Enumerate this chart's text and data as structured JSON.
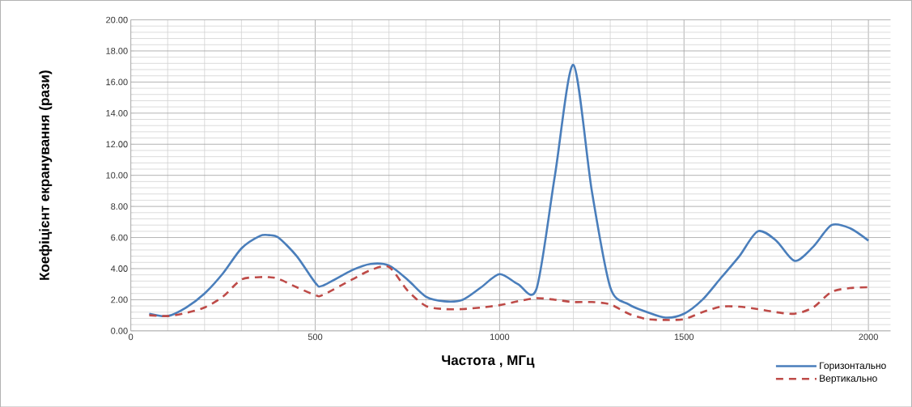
{
  "chart_data": {
    "type": "line",
    "xlabel": "Частота , МГц",
    "ylabel": "Коефіцієнт екранування  (рази)",
    "x": [
      50,
      100,
      150,
      200,
      250,
      300,
      350,
      375,
      400,
      450,
      500,
      520,
      600,
      650,
      700,
      750,
      800,
      850,
      900,
      950,
      1000,
      1050,
      1100,
      1150,
      1200,
      1250,
      1300,
      1350,
      1400,
      1450,
      1500,
      1550,
      1600,
      1650,
      1700,
      1750,
      1800,
      1850,
      1900,
      1950,
      2000
    ],
    "series": [
      {
        "name": "Горизонтально",
        "color": "#4a7ebb",
        "line_style": "solid",
        "values": [
          1.1,
          0.95,
          1.5,
          2.4,
          3.7,
          5.3,
          6.1,
          6.15,
          6.0,
          4.8,
          3.1,
          2.9,
          3.9,
          4.3,
          4.2,
          3.3,
          2.2,
          1.9,
          2.0,
          2.8,
          3.65,
          3.0,
          2.7,
          10.0,
          17.1,
          9.0,
          2.8,
          1.7,
          1.2,
          0.85,
          1.1,
          2.0,
          3.4,
          4.8,
          6.4,
          5.8,
          4.5,
          5.4,
          6.8,
          6.6,
          5.8
        ]
      },
      {
        "name": "Вертикально",
        "color": "#be4b48",
        "line_style": "dashed",
        "values": [
          1.0,
          0.95,
          1.15,
          1.5,
          2.2,
          3.3,
          3.45,
          3.45,
          3.35,
          2.8,
          2.3,
          2.3,
          3.3,
          3.9,
          4.1,
          2.6,
          1.6,
          1.4,
          1.4,
          1.5,
          1.65,
          1.9,
          2.1,
          2.0,
          1.85,
          1.85,
          1.7,
          1.1,
          0.75,
          0.7,
          0.75,
          1.2,
          1.55,
          1.55,
          1.4,
          1.2,
          1.1,
          1.5,
          2.5,
          2.75,
          2.8
        ]
      }
    ],
    "xlim": [
      0,
      2060
    ],
    "xticks": [
      0,
      500,
      1000,
      1500,
      2000
    ],
    "ylim": [
      0,
      20
    ],
    "yticks": [
      {
        "value": 0,
        "label": "0.00"
      },
      {
        "value": 2,
        "label": "2.00"
      },
      {
        "value": 4,
        "label": "4.00"
      },
      {
        "value": 6,
        "label": "6.00"
      },
      {
        "value": 8,
        "label": "8.00"
      },
      {
        "value": 10,
        "label": "10.00"
      },
      {
        "value": 12,
        "label": "12.00"
      },
      {
        "value": 14,
        "label": "14.00"
      },
      {
        "value": 16,
        "label": "16.00"
      },
      {
        "value": 18,
        "label": "18.00"
      },
      {
        "value": 20,
        "label": "20.00"
      }
    ],
    "grid": true,
    "legend": "bottom right"
  }
}
